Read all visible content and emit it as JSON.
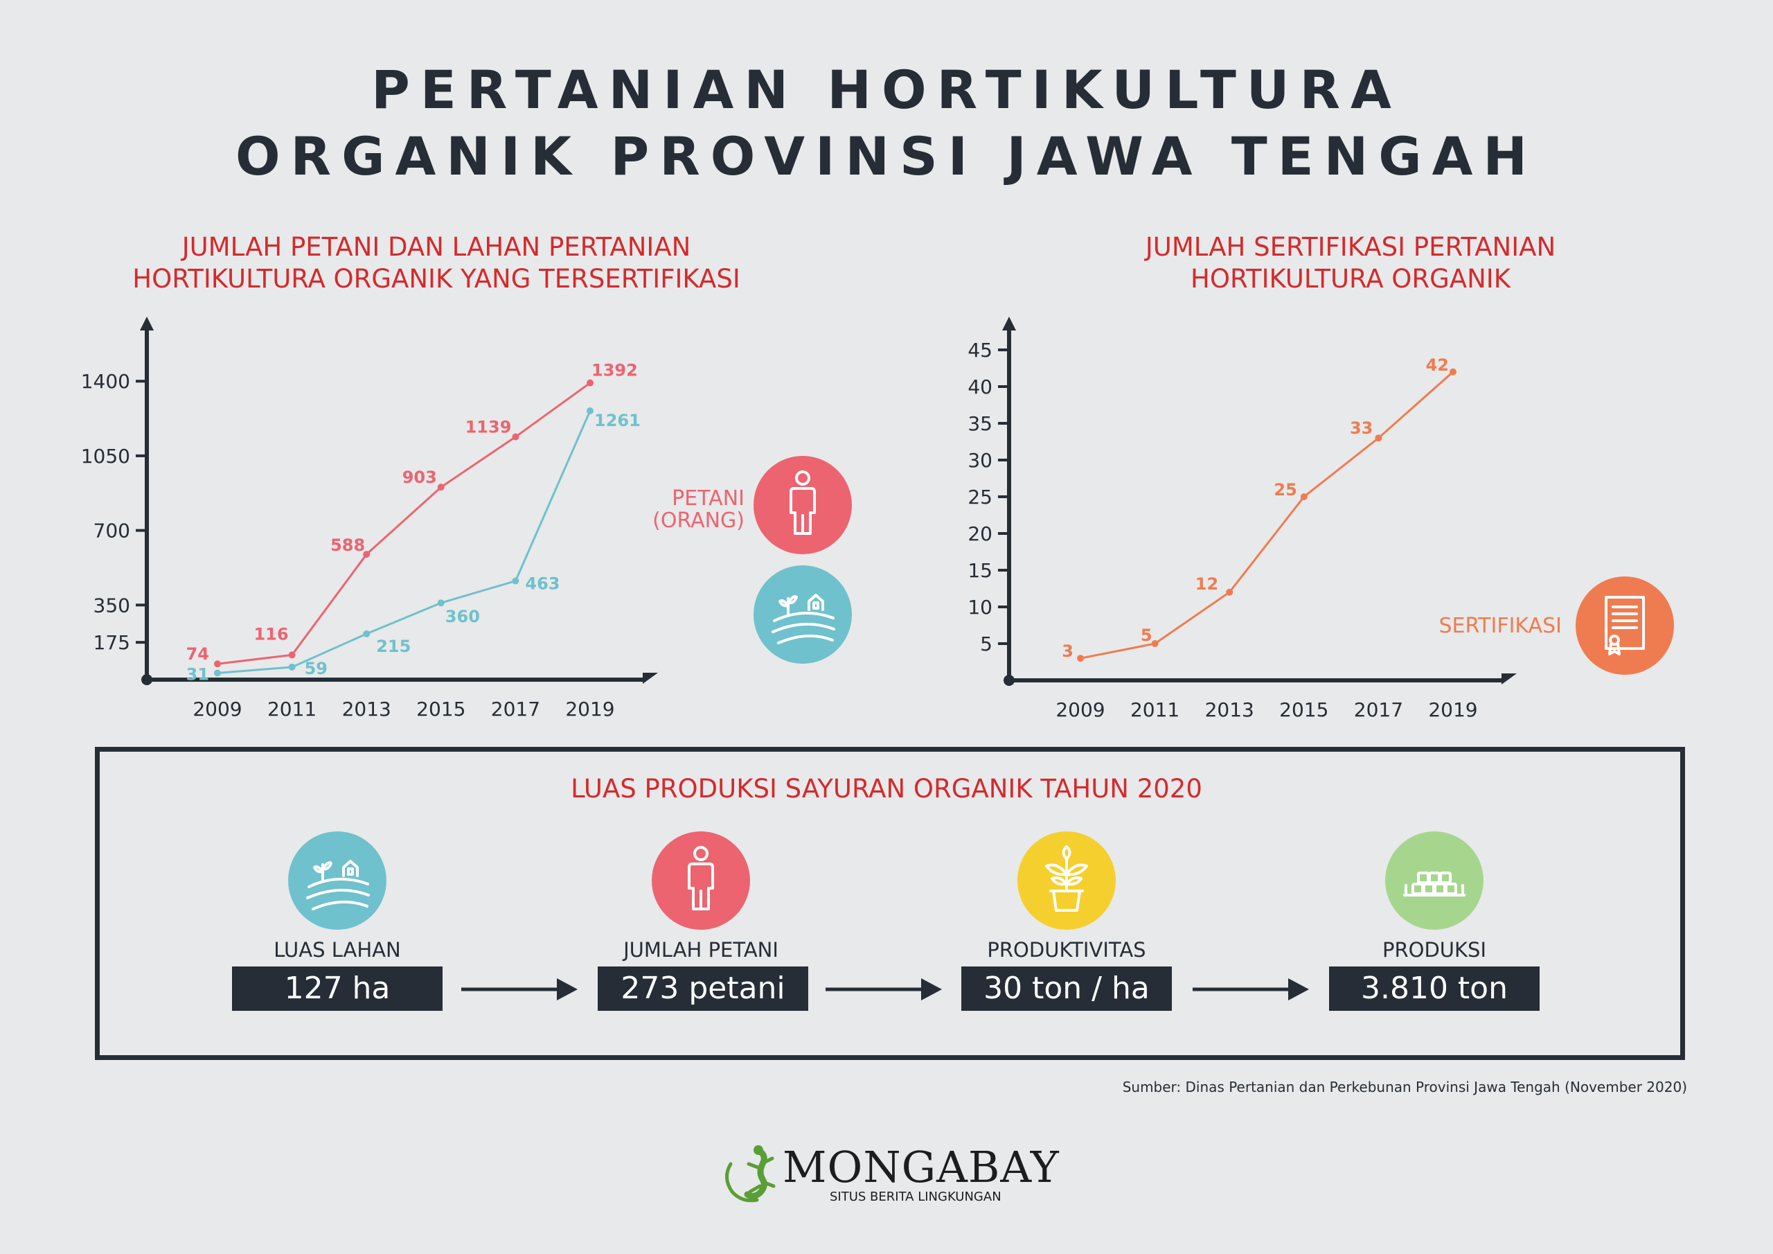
{
  "title": {
    "line1": "PERTANIAN HORTIKULTURA",
    "line2": "ORGANIK PROVINSI JAWA TENGAH"
  },
  "chart_data": [
    {
      "type": "line",
      "title_line1": "JUMLAH PETANI DAN LAHAN PERTANIAN",
      "title_line2": "HORTIKULTURA ORGANIK YANG TERSERTIFIKASI",
      "x": [
        "2009",
        "2011",
        "2013",
        "2015",
        "2017",
        "2019"
      ],
      "yticks": [
        175,
        350,
        700,
        1050,
        1400
      ],
      "ylim": [
        0,
        1500
      ],
      "series": [
        {
          "color": "#ec6470",
          "values": [
            74,
            116,
            588,
            903,
            1139,
            1392
          ]
        },
        {
          "color": "#6fc1cd",
          "values": [
            31,
            59,
            215,
            360,
            463,
            1261
          ]
        }
      ],
      "legend": [
        {
          "label_line1": "PETANI",
          "label_line2": "(ORANG)",
          "icon": "person-icon",
          "color": "#ec6470"
        },
        {
          "label_line1": "",
          "label_line2": "",
          "icon": "farmland-icon",
          "color": "#6fc1cd"
        }
      ]
    },
    {
      "type": "line",
      "title_line1": "JUMLAH SERTIFIKASI PERTANIAN",
      "title_line2": "HORTIKULTURA ORGANIK",
      "x": [
        "2009",
        "2011",
        "2013",
        "2015",
        "2017",
        "2019"
      ],
      "yticks": [
        5,
        10,
        15,
        20,
        25,
        30,
        35,
        40,
        45
      ],
      "ylim": [
        0,
        48
      ],
      "series": [
        {
          "color": "#ef7c50",
          "values": [
            3,
            5,
            12,
            25,
            33,
            42
          ]
        }
      ],
      "legend": [
        {
          "label_line1": "SERTIFIKASI",
          "icon": "certificate-icon",
          "color": "#ef7c50"
        }
      ]
    }
  ],
  "production": {
    "title": "LUAS PRODUKSI SAYURAN ORGANIK TAHUN 2020",
    "items": [
      {
        "label": "LUAS LAHAN",
        "value": "127 ha",
        "icon": "farmland-icon",
        "color": "#6fc1cd"
      },
      {
        "label": "JUMLAH PETANI",
        "value": "273 petani",
        "icon": "person-icon",
        "color": "#ec6470"
      },
      {
        "label": "PRODUKTIVITAS",
        "value": "30 ton / ha",
        "icon": "potted-plant-icon",
        "color": "#f5cf2e"
      },
      {
        "label": "PRODUKSI",
        "value": "3.810 ton",
        "icon": "harvest-icon",
        "color": "#a6d68e"
      }
    ]
  },
  "source": "Sumber: Dinas Pertanian dan Perkebunan Provinsi Jawa Tengah (November 2020)",
  "logo": {
    "name": "MONGABAY",
    "tagline": "SITUS BERITA LINGKUNGAN"
  }
}
